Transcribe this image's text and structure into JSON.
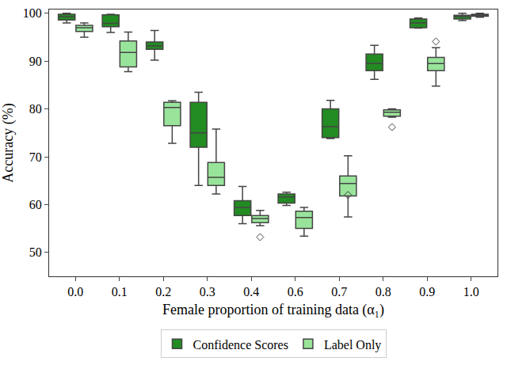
{
  "chart_data": {
    "type": "box",
    "x_label": "Female proportion of training data (α₁)",
    "y_label": "Accuracy (%)",
    "categories": [
      "0.0",
      "0.1",
      "0.2",
      "0.3",
      "0.4",
      "0.6",
      "0.7",
      "0.8",
      "0.9",
      "1.0"
    ],
    "ylim": [
      45,
      100.8
    ],
    "yticks": [
      50,
      60,
      70,
      80,
      90,
      100
    ],
    "grid": false,
    "legend": "bottom",
    "series": [
      {
        "name": "Confidence Scores",
        "color": "#228b22",
        "lower_whisker": [
          98.0,
          96.0,
          90.2,
          64.0,
          56.0,
          59.8,
          73.8,
          86.2,
          96.9,
          98.5
        ],
        "q1": [
          98.6,
          97.2,
          92.5,
          72.0,
          57.7,
          60.3,
          74.0,
          88.0,
          97.0,
          98.8
        ],
        "median": [
          99.3,
          97.9,
          93.2,
          75.0,
          59.4,
          61.6,
          76.3,
          89.5,
          98.0,
          99.3
        ],
        "q3": [
          99.8,
          99.7,
          94.0,
          81.4,
          60.8,
          62.2,
          80.0,
          91.5,
          98.8,
          99.6
        ],
        "upper_whisker": [
          100.0,
          99.8,
          96.4,
          83.5,
          63.8,
          62.6,
          81.8,
          93.3,
          99.0,
          100.0
        ],
        "outliers": []
      },
      {
        "name": "Label Only",
        "color": "#98e49a",
        "lower_whisker": [
          95.0,
          87.8,
          72.8,
          62.2,
          55.6,
          53.4,
          57.4,
          78.3,
          84.8,
          99.2
        ],
        "q1": [
          96.2,
          88.8,
          76.5,
          64.0,
          56.2,
          55.0,
          61.8,
          78.5,
          88.0,
          99.4
        ],
        "median": [
          97.0,
          91.8,
          80.3,
          65.7,
          57.1,
          57.3,
          64.4,
          79.3,
          89.5,
          99.6
        ],
        "q3": [
          97.5,
          94.2,
          81.4,
          68.8,
          57.7,
          58.6,
          66.0,
          79.8,
          90.8,
          99.8
        ],
        "upper_whisker": [
          98.0,
          96.1,
          81.7,
          75.8,
          58.8,
          59.4,
          70.2,
          80.0,
          92.8,
          100.0
        ],
        "outliers": [
          {
            "category": "0.4",
            "value": 53.2
          },
          {
            "category": "0.7",
            "value": 62.0
          },
          {
            "category": "0.8",
            "value": 76.2
          },
          {
            "category": "0.9",
            "value": 94.1
          }
        ]
      }
    ]
  }
}
